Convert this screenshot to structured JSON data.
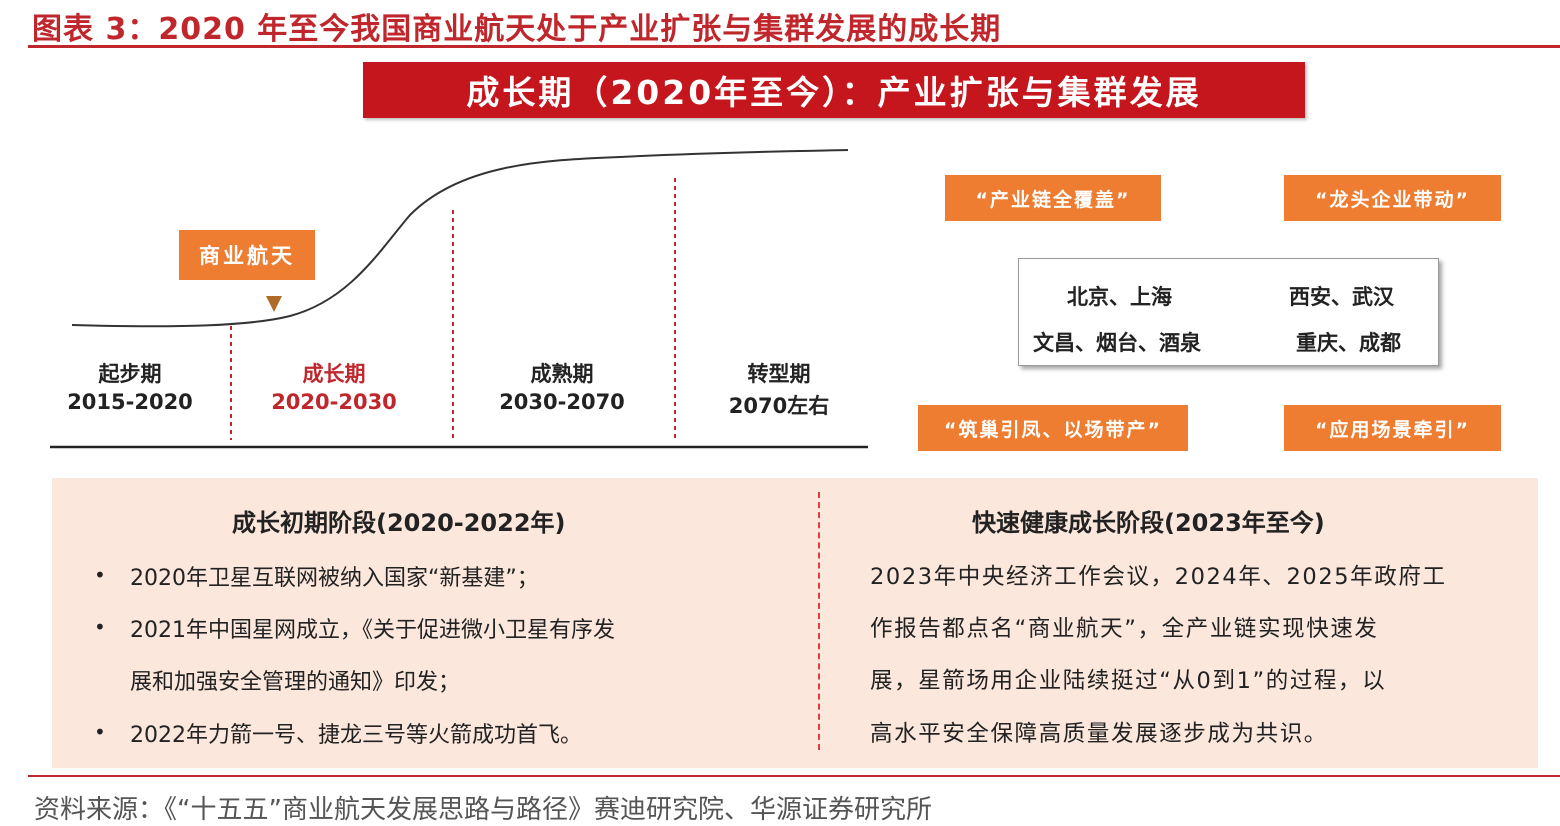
{
  "title": "图表 3：2020 年至今我国商业航天处于产业扩张与集群发展的成长期",
  "banner": "成长期（2020年至今）：产业扩张与集群发展",
  "marker_label": "商业航天",
  "phases": [
    {
      "name": "起步期",
      "years": "2015-2020"
    },
    {
      "name": "成长期",
      "years": "2020-2030"
    },
    {
      "name": "成熟期",
      "years": "2030-2070"
    },
    {
      "name": "转型期",
      "years": "2070左右"
    }
  ],
  "tags": {
    "top_left": "“产业链全覆盖”",
    "top_right": "“龙头企业带动”",
    "bottom_left": "“筑巢引凤、以场带产”",
    "bottom_right": "“应用场景牵引”"
  },
  "cities": {
    "row1_left": "北京、上海",
    "row1_right": "西安、武汉",
    "row2_left": "文昌、烟台、酒泉",
    "row2_right": "重庆、成都"
  },
  "early_stage": {
    "heading": "成长初期阶段(2020-2022年)",
    "bullets": [
      "2020年卫星互联网被纳入国家“新基建”；",
      "2021年中国星网成立，《关于促进微小卫星有序发",
      "展和加强安全管理的通知》印发；",
      "2022年力箭一号、捷龙三号等火箭成功首飞。"
    ]
  },
  "fast_stage": {
    "heading": "快速健康成长阶段(2023年至今)",
    "lines": [
      "2023年中央经济工作会议，2024年、2025年政府工",
      "作报告都点名“商业航天”，全产业链实现快速发",
      "展，星箭场用企业陆续挺过“从0到1”的过程，以",
      "高水平安全保障高质量发展逐步成为共识。"
    ]
  },
  "source": "资料来源：《“十五五”商业航天发展思路与路径》赛迪研究院、华源证券研究所",
  "colors": {
    "title_red": "#c0272d",
    "banner_red": "#c4161c",
    "tag_orange": "#ee7d31",
    "panel_bg": "#fbe7dc"
  }
}
